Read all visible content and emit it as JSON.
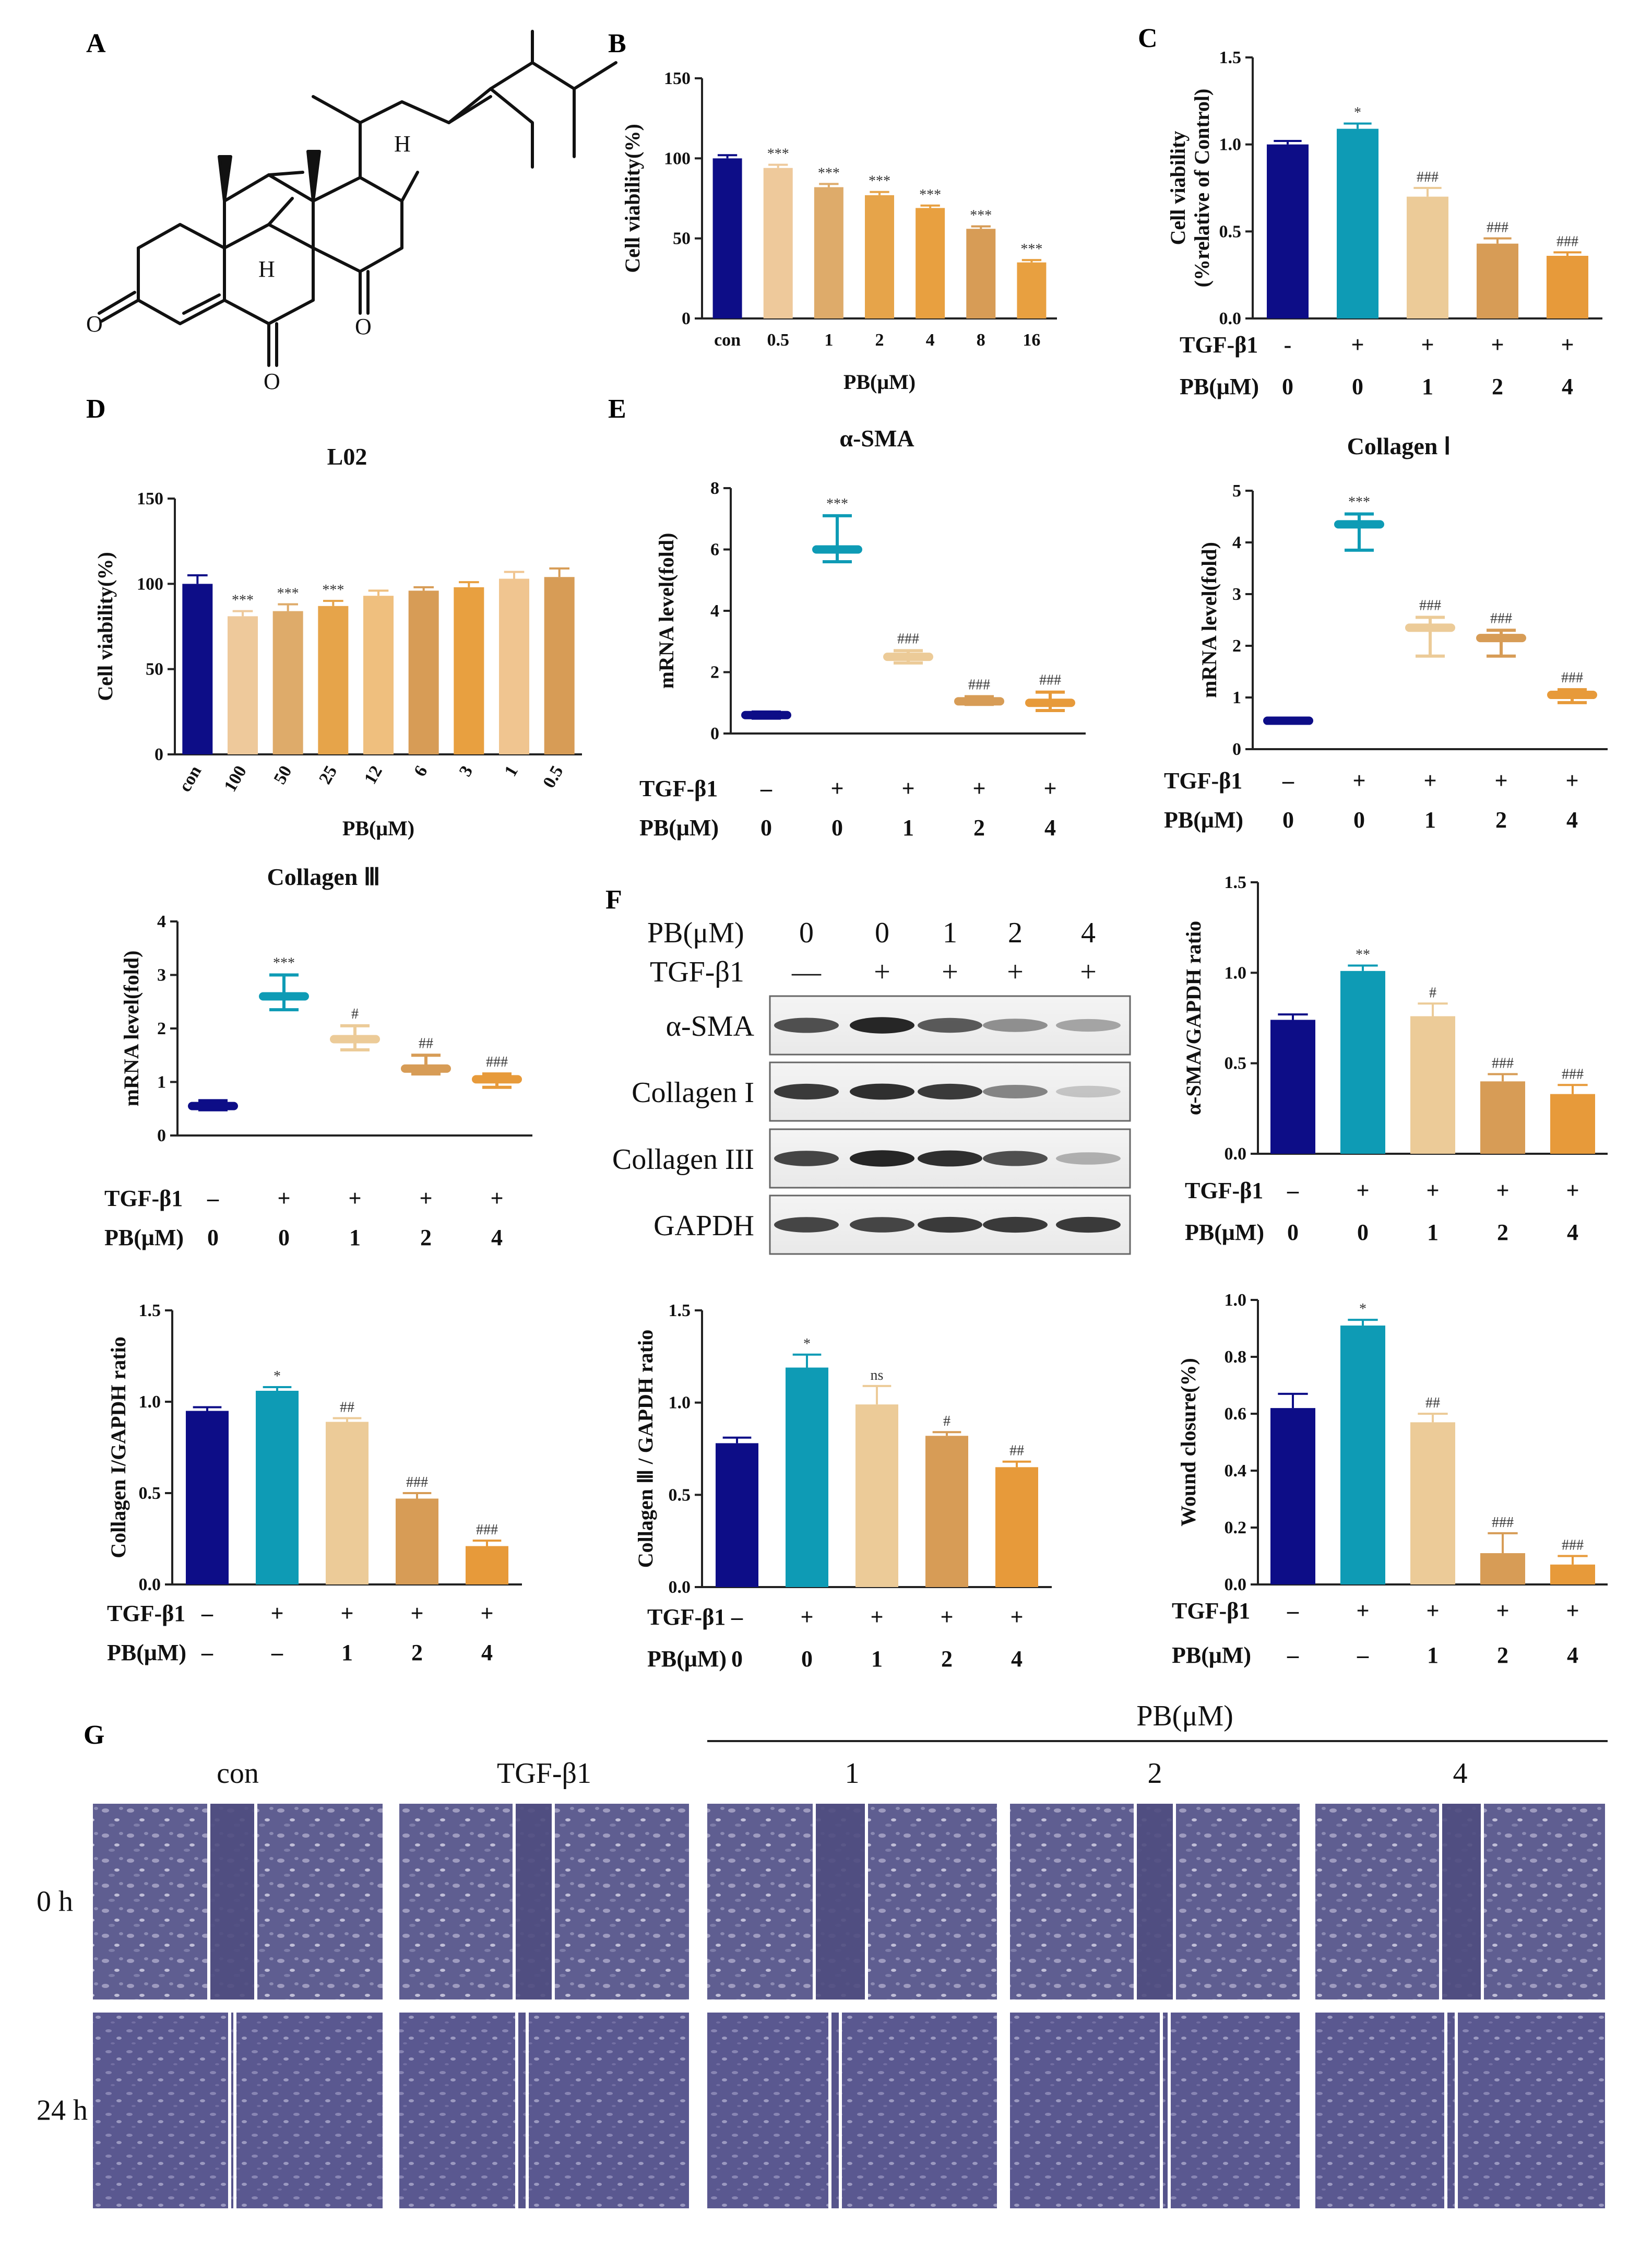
{
  "colors": {
    "con": "#0d0d87",
    "tgf": "#0e9bb5",
    "pb1": "#eccb98",
    "pb2": "#d79c56",
    "pb4": "#e79a3a",
    "light1": "#eec99b",
    "light2": "#deab6a",
    "mid": "#e6a44a",
    "orange": "#e8a040",
    "stripe_a": "#e2b67a",
    "stripe_b": "#e3a44d",
    "micro_bg": "#5b5a8c"
  },
  "panels": {
    "A": {
      "label": "A"
    },
    "B": {
      "label": "B"
    },
    "C": {
      "label": "C"
    },
    "D": {
      "label": "D"
    },
    "E": {
      "label": "E"
    },
    "F": {
      "label": "F"
    },
    "G": {
      "label": "G"
    }
  },
  "structure": {
    "atom_H1": "H",
    "atom_H2": "H",
    "atom_O1": "O",
    "atom_O2": "O",
    "atom_O3": "O"
  },
  "chart_data": [
    {
      "id": "B",
      "type": "bar",
      "title": "",
      "xlabel": "PB(μM)",
      "ylabel": "Cell viability(%)",
      "ylim": [
        0,
        150
      ],
      "yticks": [
        "0",
        "50",
        "100",
        "150"
      ],
      "categories": [
        "con",
        "0.5",
        "1",
        "2",
        "4",
        "8",
        "16"
      ],
      "values": [
        100,
        94,
        82,
        77,
        69,
        56,
        35
      ],
      "errors": [
        2,
        2,
        2,
        2,
        1.5,
        1.5,
        1.5
      ],
      "sig": [
        "",
        "***",
        "***",
        "***",
        "***",
        "***",
        "***"
      ]
    },
    {
      "id": "C",
      "type": "bar",
      "title": "",
      "ylabel": "Cell viability",
      "ylabel2": "(%relative of Control)",
      "ylim": [
        0,
        1.5
      ],
      "yticks": [
        "0.0",
        "0.5",
        "1.0",
        "1.5"
      ],
      "values": [
        1.0,
        1.09,
        0.7,
        0.43,
        0.36
      ],
      "errors": [
        0.02,
        0.03,
        0.05,
        0.03,
        0.02
      ],
      "sig": [
        "",
        "*",
        "###",
        "###",
        "###"
      ],
      "row1_label": "TGF-β1",
      "row1": [
        "-",
        "+",
        "+",
        "+",
        "+"
      ],
      "row2_label": "PB(μM)",
      "row2": [
        "0",
        "0",
        "1",
        "2",
        "4"
      ]
    },
    {
      "id": "D",
      "type": "bar",
      "title": "L02",
      "xlabel": "PB(μM)",
      "ylabel": "Cell viability(%)",
      "ylim": [
        0,
        150
      ],
      "yticks": [
        "0",
        "50",
        "100",
        "150"
      ],
      "categories": [
        "con",
        "100",
        "50",
        "25",
        "12",
        "6",
        "3",
        "1",
        "0.5"
      ],
      "values": [
        100,
        81,
        84,
        87,
        93,
        96,
        98,
        103,
        104
      ],
      "errors": [
        5,
        3,
        4,
        3,
        3,
        2,
        3,
        4,
        5
      ],
      "sig": [
        "",
        "***",
        "***",
        "***",
        "",
        "",
        "",
        "",
        ""
      ]
    },
    {
      "id": "E1",
      "type": "scatter",
      "title": "α-SMA",
      "ylabel": "mRNA level(fold)",
      "ylim": [
        0,
        8
      ],
      "yticks": [
        "0",
        "2",
        "4",
        "6",
        "8"
      ],
      "mean": [
        0.6,
        6.0,
        2.5,
        1.05,
        1.0
      ],
      "min": [
        0.5,
        5.6,
        2.3,
        0.95,
        0.75
      ],
      "max": [
        0.7,
        7.1,
        2.7,
        1.2,
        1.35
      ],
      "sig": [
        "",
        "***",
        "###",
        "###",
        "###"
      ],
      "row1_label": "TGF-β1",
      "row1": [
        "–",
        "+",
        "+",
        "+",
        "+"
      ],
      "row2_label": "PB(μM)",
      "row2": [
        "0",
        "0",
        "1",
        "2",
        "4"
      ]
    },
    {
      "id": "E2",
      "type": "scatter",
      "title": "Collagen Ⅰ",
      "ylabel": "mRNA level(fold)",
      "ylim": [
        0,
        5
      ],
      "yticks": [
        "0",
        "1",
        "2",
        "3",
        "4",
        "5"
      ],
      "mean": [
        0.55,
        4.35,
        2.35,
        2.15,
        1.05
      ],
      "min": [
        0.5,
        3.85,
        1.8,
        1.8,
        0.9
      ],
      "max": [
        0.6,
        4.55,
        2.55,
        2.3,
        1.15
      ],
      "sig": [
        "",
        "***",
        "###",
        "###",
        "###"
      ],
      "row1_label": "TGF-β1",
      "row1": [
        "–",
        "+",
        "+",
        "+",
        "+"
      ],
      "row2_label": "PB(μM)",
      "row2": [
        "0",
        "0",
        "1",
        "2",
        "4"
      ]
    },
    {
      "id": "E3",
      "type": "scatter",
      "title": "Collagen Ⅲ",
      "ylabel": "mRNA level(fold)",
      "ylim": [
        0,
        4
      ],
      "yticks": [
        "0",
        "1",
        "2",
        "3",
        "4"
      ],
      "mean": [
        0.55,
        2.6,
        1.8,
        1.25,
        1.05
      ],
      "min": [
        0.48,
        2.35,
        1.6,
        1.15,
        0.9
      ],
      "max": [
        0.65,
        3.0,
        2.05,
        1.5,
        1.15
      ],
      "sig": [
        "",
        "***",
        "#",
        "##",
        "###"
      ],
      "row1_label": "TGF-β1",
      "row1": [
        "–",
        "+",
        "+",
        "+",
        "+"
      ],
      "row2_label": "PB(μM)",
      "row2": [
        "0",
        "0",
        "1",
        "2",
        "4"
      ]
    },
    {
      "id": "F1",
      "type": "bar",
      "title": "",
      "ylabel": "α-SMA/GAPDH ratio",
      "ylim": [
        0,
        1.5
      ],
      "yticks": [
        "0.0",
        "0.5",
        "1.0",
        "1.5"
      ],
      "values": [
        0.74,
        1.01,
        0.76,
        0.4,
        0.33
      ],
      "errors": [
        0.03,
        0.03,
        0.07,
        0.04,
        0.05
      ],
      "sig": [
        "",
        "**",
        "#",
        "###",
        "###"
      ],
      "row1_label": "TGF-β1",
      "row1": [
        "–",
        "+",
        "+",
        "+",
        "+"
      ],
      "row2_label": "PB(μM)",
      "row2": [
        "0",
        "0",
        "1",
        "2",
        "4"
      ]
    },
    {
      "id": "F2",
      "type": "bar",
      "title": "",
      "ylabel": "Collagen  I/GAPDH ratio",
      "ylim": [
        0,
        1.5
      ],
      "yticks": [
        "0.0",
        "0.5",
        "1.0",
        "1.5"
      ],
      "values": [
        0.95,
        1.06,
        0.89,
        0.47,
        0.21
      ],
      "errors": [
        0.02,
        0.02,
        0.02,
        0.03,
        0.03
      ],
      "sig": [
        "",
        "*",
        "##",
        "###",
        "###"
      ],
      "row1_label": "TGF-β1",
      "row1": [
        "–",
        "+",
        "+",
        "+",
        "+"
      ],
      "row2_label": "PB(μM)",
      "row2": [
        "–",
        "–",
        "1",
        "2",
        "4"
      ]
    },
    {
      "id": "F3",
      "type": "bar",
      "title": "",
      "ylabel": "Collagen Ⅲ / GAPDH ratio",
      "ylim": [
        0,
        1.5
      ],
      "yticks": [
        "0.0",
        "0.5",
        "1.0",
        "1.5"
      ],
      "values": [
        0.78,
        1.19,
        0.99,
        0.82,
        0.65
      ],
      "errors": [
        0.03,
        0.07,
        0.1,
        0.02,
        0.03
      ],
      "sig": [
        "",
        "*",
        "ns",
        "#",
        "##"
      ],
      "row1_label": "TGF-β1",
      "row1": [
        "–",
        "+",
        "+",
        "+",
        "+"
      ],
      "row2_label": "PB(μM)",
      "row2": [
        "0",
        "0",
        "1",
        "2",
        "4"
      ]
    },
    {
      "id": "G1",
      "type": "bar",
      "title": "",
      "ylabel": "Wound closure(%)",
      "ylim": [
        0,
        1.0
      ],
      "yticks": [
        "0.0",
        "0.2",
        "0.4",
        "0.6",
        "0.8",
        "1.0"
      ],
      "values": [
        0.62,
        0.91,
        0.57,
        0.11,
        0.07
      ],
      "errors": [
        0.05,
        0.02,
        0.03,
        0.07,
        0.03
      ],
      "sig": [
        "",
        "*",
        "##",
        "###",
        "###"
      ],
      "row1_label": "TGF-β1",
      "row1": [
        "–",
        "+",
        "+",
        "+",
        "+"
      ],
      "row2_label": "PB(μM)",
      "row2": [
        "–",
        "–",
        "1",
        "2",
        "4"
      ]
    }
  ],
  "western": {
    "pb_label": "PB(μM)",
    "pb": [
      "0",
      "0",
      "1",
      "2",
      "4"
    ],
    "tgf_label": "TGF-β1",
    "tgf": [
      "—",
      "+",
      "+",
      "+",
      "+"
    ],
    "bands": [
      {
        "name": "α-SMA",
        "intensity": [
          0.75,
          0.95,
          0.7,
          0.45,
          0.35
        ]
      },
      {
        "name": "Collagen I",
        "intensity": [
          0.85,
          0.9,
          0.85,
          0.5,
          0.2
        ]
      },
      {
        "name": "Collagen III",
        "intensity": [
          0.8,
          0.95,
          0.9,
          0.75,
          0.3
        ]
      },
      {
        "name": "GAPDH",
        "intensity": [
          0.8,
          0.8,
          0.85,
          0.85,
          0.85
        ]
      }
    ]
  },
  "wound": {
    "header": "PB(μM)",
    "columns": [
      "con",
      "TGF-β1",
      "1",
      "2",
      "4"
    ],
    "rows": [
      "0 h",
      "24 h"
    ]
  }
}
